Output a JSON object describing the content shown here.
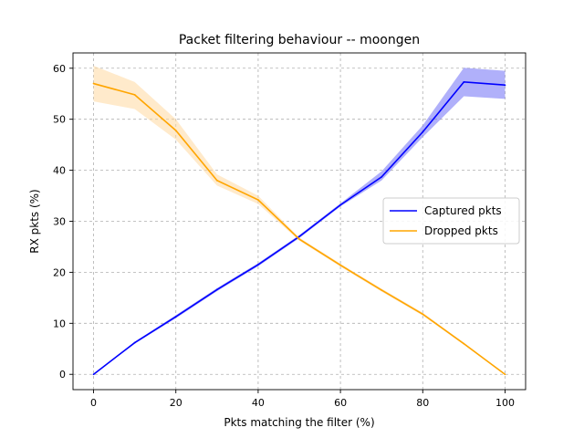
{
  "chart_data": {
    "type": "line",
    "title": "Packet filtering behaviour -- moongen",
    "xlabel": "Pkts matching the filter (%)",
    "ylabel": "RX pkts (%)",
    "xlim": [
      -5,
      105
    ],
    "ylim": [
      -3,
      63
    ],
    "xticks": [
      0,
      20,
      40,
      60,
      80,
      100
    ],
    "yticks": [
      0,
      10,
      20,
      30,
      40,
      50,
      60
    ],
    "grid": true,
    "legend_position": "center-right",
    "x": [
      0,
      10,
      20,
      30,
      40,
      50,
      60,
      70,
      80,
      90,
      100
    ],
    "series": [
      {
        "name": "Captured pkts",
        "color": "#0000ff",
        "band_color": "#6f6ff5",
        "values": [
          0,
          6.2,
          11.3,
          16.6,
          21.5,
          27.0,
          33.2,
          38.7,
          47.5,
          57.3,
          56.7
        ],
        "lower": [
          0,
          6.0,
          11.0,
          16.3,
          21.2,
          26.7,
          32.9,
          38.0,
          46.5,
          54.5,
          54.0
        ],
        "upper": [
          0,
          6.4,
          11.6,
          16.9,
          21.8,
          27.3,
          33.5,
          39.8,
          48.8,
          60.1,
          59.5
        ]
      },
      {
        "name": "Dropped pkts",
        "color": "#ffa500",
        "band_color": "#ffd9a0",
        "values": [
          57.0,
          54.8,
          47.8,
          38.0,
          34.2,
          26.5,
          21.4,
          16.5,
          11.8,
          6.0,
          0
        ],
        "lower": [
          53.5,
          52.0,
          46.0,
          37.0,
          33.4,
          26.2,
          21.1,
          16.2,
          11.5,
          5.8,
          0
        ],
        "upper": [
          60.5,
          57.3,
          50.0,
          39.2,
          35.0,
          26.8,
          21.7,
          16.8,
          12.1,
          6.2,
          0
        ]
      }
    ]
  }
}
